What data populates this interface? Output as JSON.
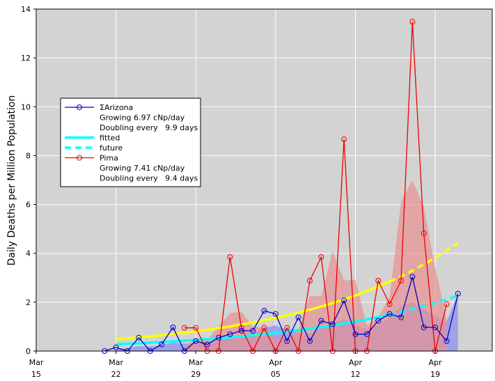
{
  "chart_data": {
    "type": "line",
    "xlabel": "",
    "ylabel": "Daily Deaths per Million Population",
    "ylim": [
      0,
      14
    ],
    "yticks": [
      0,
      2,
      4,
      6,
      8,
      10,
      12,
      14
    ],
    "xlim": [
      "2020-03-15",
      "2020-04-24"
    ],
    "xticks": [
      {
        "date": "2020-03-15",
        "label1": "Mar",
        "label2": "15"
      },
      {
        "date": "2020-03-22",
        "label1": "Mar",
        "label2": "22"
      },
      {
        "date": "2020-03-29",
        "label1": "Mar",
        "label2": "29"
      },
      {
        "date": "2020-04-05",
        "label1": "Apr",
        "label2": "05"
      },
      {
        "date": "2020-04-12",
        "label1": "Apr",
        "label2": "12"
      },
      {
        "date": "2020-04-19",
        "label1": "Apr",
        "label2": "19"
      }
    ],
    "grid": true,
    "legend": {
      "placement": "center-left",
      "entries": [
        {
          "text": "ΣArizona",
          "style": "line-marker",
          "color": "#0000cc"
        },
        {
          "text": "Growing 6.97 cNp/day",
          "style": "none"
        },
        {
          "text": "Doubling every   9.9 days",
          "style": "none"
        },
        {
          "text": "fitted",
          "style": "solid",
          "color": "#00ffff"
        },
        {
          "text": "future",
          "style": "dashed",
          "color": "#00ffff"
        },
        {
          "text": "Pima",
          "style": "line-marker",
          "color": "#ee0000"
        },
        {
          "text": "Growing 7.41 cNp/day",
          "style": "none"
        },
        {
          "text": "Doubling every   9.4 days",
          "style": "none"
        }
      ]
    },
    "series": [
      {
        "name": "ΣArizona",
        "color": "#0000cc",
        "x": [
          "2020-03-21",
          "2020-03-22",
          "2020-03-23",
          "2020-03-24",
          "2020-03-25",
          "2020-03-26",
          "2020-03-27",
          "2020-03-28",
          "2020-03-29",
          "2020-03-30",
          "2020-03-31",
          "2020-04-01",
          "2020-04-02",
          "2020-04-03",
          "2020-04-04",
          "2020-04-05",
          "2020-04-06",
          "2020-04-07",
          "2020-04-08",
          "2020-04-09",
          "2020-04-10",
          "2020-04-11",
          "2020-04-12",
          "2020-04-13",
          "2020-04-14",
          "2020-04-15",
          "2020-04-16",
          "2020-04-17",
          "2020-04-18",
          "2020-04-19",
          "2020-04-20",
          "2020-04-21"
        ],
        "y": [
          0.0,
          0.15,
          0.0,
          0.55,
          0.0,
          0.27,
          0.97,
          0.0,
          0.41,
          0.27,
          0.55,
          0.69,
          0.83,
          0.83,
          1.65,
          1.52,
          0.41,
          1.38,
          0.41,
          1.24,
          1.1,
          2.07,
          0.69,
          0.69,
          1.24,
          1.52,
          1.38,
          3.04,
          0.97,
          0.97,
          0.41,
          2.35
        ]
      },
      {
        "name": "Pima",
        "color": "#ee0000",
        "x": [
          "2020-03-28",
          "2020-03-29",
          "2020-03-30",
          "2020-03-31",
          "2020-04-01",
          "2020-04-02",
          "2020-04-03",
          "2020-04-04",
          "2020-04-05",
          "2020-04-06",
          "2020-04-07",
          "2020-04-08",
          "2020-04-09",
          "2020-04-10",
          "2020-04-11",
          "2020-04-12",
          "2020-04-13",
          "2020-04-14",
          "2020-04-15",
          "2020-04-16",
          "2020-04-17",
          "2020-04-18",
          "2020-04-19",
          "2020-04-20"
        ],
        "y": [
          0.95,
          0.95,
          0.0,
          0.0,
          3.85,
          0.95,
          0.0,
          0.95,
          0.0,
          0.95,
          0.0,
          2.88,
          3.85,
          0.0,
          8.67,
          0.0,
          0.0,
          2.88,
          1.92,
          2.88,
          13.48,
          4.82,
          0.0,
          1.92
        ]
      }
    ],
    "areas": [
      {
        "name": "ΣArizona band",
        "color": "#8a8aee",
        "x": [
          "2020-03-22",
          "2020-03-23",
          "2020-03-24",
          "2020-03-25",
          "2020-03-26",
          "2020-03-27",
          "2020-03-28",
          "2020-03-29",
          "2020-03-30",
          "2020-03-31",
          "2020-04-01",
          "2020-04-02",
          "2020-04-03",
          "2020-04-04",
          "2020-04-05",
          "2020-04-06",
          "2020-04-07",
          "2020-04-08",
          "2020-04-09",
          "2020-04-10",
          "2020-04-11",
          "2020-04-12",
          "2020-04-13",
          "2020-04-14",
          "2020-04-15",
          "2020-04-16",
          "2020-04-17",
          "2020-04-18",
          "2020-04-19",
          "2020-04-20",
          "2020-04-21"
        ],
        "y": [
          0.05,
          0.12,
          0.2,
          0.18,
          0.25,
          0.35,
          0.3,
          0.32,
          0.38,
          0.45,
          0.55,
          0.62,
          0.75,
          0.95,
          1.05,
          0.85,
          0.75,
          0.7,
          0.95,
          1.15,
          1.3,
          1.05,
          0.9,
          1.05,
          1.35,
          1.85,
          2.0,
          1.7,
          1.45,
          1.2,
          2.35
        ]
      },
      {
        "name": "Pima band",
        "color": "#e89090",
        "x": [
          "2020-03-28",
          "2020-03-29",
          "2020-03-30",
          "2020-03-31",
          "2020-04-01",
          "2020-04-02",
          "2020-04-03",
          "2020-04-04",
          "2020-04-05",
          "2020-04-06",
          "2020-04-07",
          "2020-04-08",
          "2020-04-09",
          "2020-04-10",
          "2020-04-11",
          "2020-04-12",
          "2020-04-13",
          "2020-04-14",
          "2020-04-15",
          "2020-04-16",
          "2020-04-17",
          "2020-04-18",
          "2020-04-19",
          "2020-04-20"
        ],
        "y": [
          0.2,
          0.5,
          0.45,
          1.0,
          1.55,
          1.6,
          1.0,
          0.95,
          0.55,
          0.5,
          0.9,
          2.25,
          2.25,
          4.1,
          2.9,
          2.9,
          1.05,
          1.4,
          2.2,
          6.1,
          7.0,
          5.9,
          3.4,
          1.3
        ]
      }
    ],
    "fits": [
      {
        "name": "ΣArizona fitted",
        "color": "#00ffff",
        "style": "solid",
        "x0": "2020-03-22",
        "x1": "2020-04-15",
        "y0": 0.28,
        "rate_per_day": 0.0697
      },
      {
        "name": "ΣArizona future",
        "color": "#00ffff",
        "style": "dashed",
        "x0": "2020-04-15",
        "x1": "2020-04-21",
        "y0": 0.28,
        "rate_per_day": 0.0697,
        "t0": "2020-03-22"
      },
      {
        "name": "Pima fitted",
        "color": "#ffff00",
        "style": "solid",
        "x0": "2020-03-22",
        "x1": "2020-04-15",
        "y0": 0.48,
        "rate_per_day": 0.0741
      },
      {
        "name": "Pima future",
        "color": "#ffff00",
        "style": "dashed",
        "x0": "2020-04-15",
        "x1": "2020-04-21",
        "y0": 0.48,
        "rate_per_day": 0.0741,
        "t0": "2020-03-22"
      }
    ]
  }
}
